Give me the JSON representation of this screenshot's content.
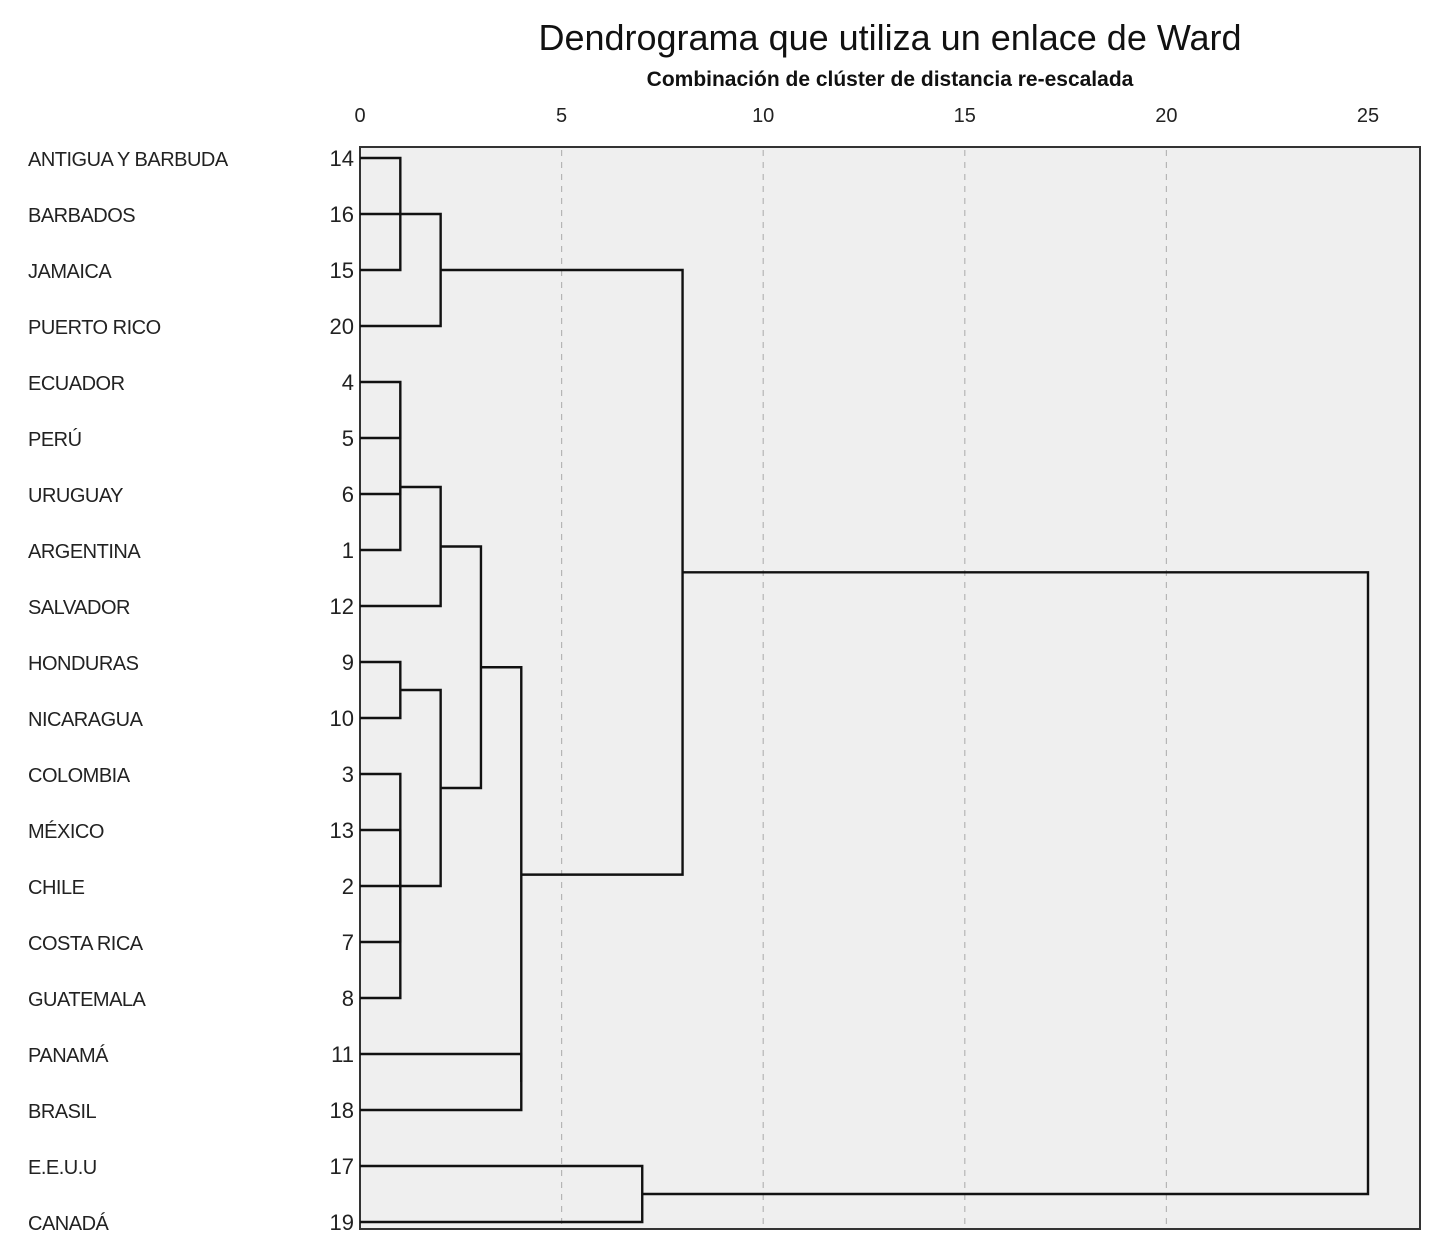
{
  "chart_data": {
    "type": "dendrogram",
    "title": "Dendrograma que utiliza un enlace de Ward",
    "xlabel": "Combinación de clúster de distancia re-escalada",
    "xlim": [
      0,
      25
    ],
    "xticks": [
      0,
      5,
      10,
      15,
      20,
      25
    ],
    "grid": true,
    "leaves": [
      {
        "name": "ANTIGUA Y BARBUDA",
        "case": "14"
      },
      {
        "name": "BARBADOS",
        "case": "16"
      },
      {
        "name": "JAMAICA",
        "case": "15"
      },
      {
        "name": "PUERTO RICO",
        "case": "20"
      },
      {
        "name": "ECUADOR",
        "case": "4"
      },
      {
        "name": "PERÚ",
        "case": "5"
      },
      {
        "name": "URUGUAY",
        "case": "6"
      },
      {
        "name": "ARGENTINA",
        "case": "1"
      },
      {
        "name": "SALVADOR",
        "case": "12"
      },
      {
        "name": "HONDURAS",
        "case": "9"
      },
      {
        "name": "NICARAGUA",
        "case": "10"
      },
      {
        "name": "COLOMBIA",
        "case": "3"
      },
      {
        "name": "MÉXICO",
        "case": "13"
      },
      {
        "name": "CHILE",
        "case": "2"
      },
      {
        "name": "COSTA RICA",
        "case": "7"
      },
      {
        "name": "GUATEMALA",
        "case": "8"
      },
      {
        "name": "PANAMÁ",
        "case": "11"
      },
      {
        "name": "BRASIL",
        "case": "18"
      },
      {
        "name": "E.E.U.U",
        "case": "17"
      },
      {
        "name": "CANADÁ",
        "case": "19"
      }
    ],
    "merges": [
      {
        "a": "L0",
        "b": "L2",
        "height": 1
      },
      {
        "a": "C0",
        "b": "L1",
        "height": 1
      },
      {
        "a": "C1",
        "b": "L3",
        "height": 2
      },
      {
        "a": "L4",
        "b": "L5",
        "height": 1
      },
      {
        "a": "C3",
        "b": "L7",
        "height": 1
      },
      {
        "a": "C4",
        "b": "L6",
        "height": 1
      },
      {
        "a": "L9",
        "b": "L10",
        "height": 1
      },
      {
        "a": "L11",
        "b": "L13",
        "height": 1
      },
      {
        "a": "C7",
        "b": "L14",
        "height": 1
      },
      {
        "a": "C8",
        "b": "L15",
        "height": 1
      },
      {
        "a": "C9",
        "b": "L12",
        "height": 1
      },
      {
        "a": "C5",
        "b": "L8",
        "height": 2
      },
      {
        "a": "C6",
        "b": "C10",
        "height": 2
      },
      {
        "a": "C11",
        "b": "C12",
        "height": 3
      },
      {
        "a": "L16",
        "b": "L17",
        "height": 4
      },
      {
        "a": "C13",
        "b": "C14",
        "height": 4
      },
      {
        "a": "C2",
        "b": "C15",
        "height": 8
      },
      {
        "a": "L18",
        "b": "L19",
        "height": 7
      },
      {
        "a": "C16",
        "b": "C17",
        "height": 25
      }
    ]
  }
}
